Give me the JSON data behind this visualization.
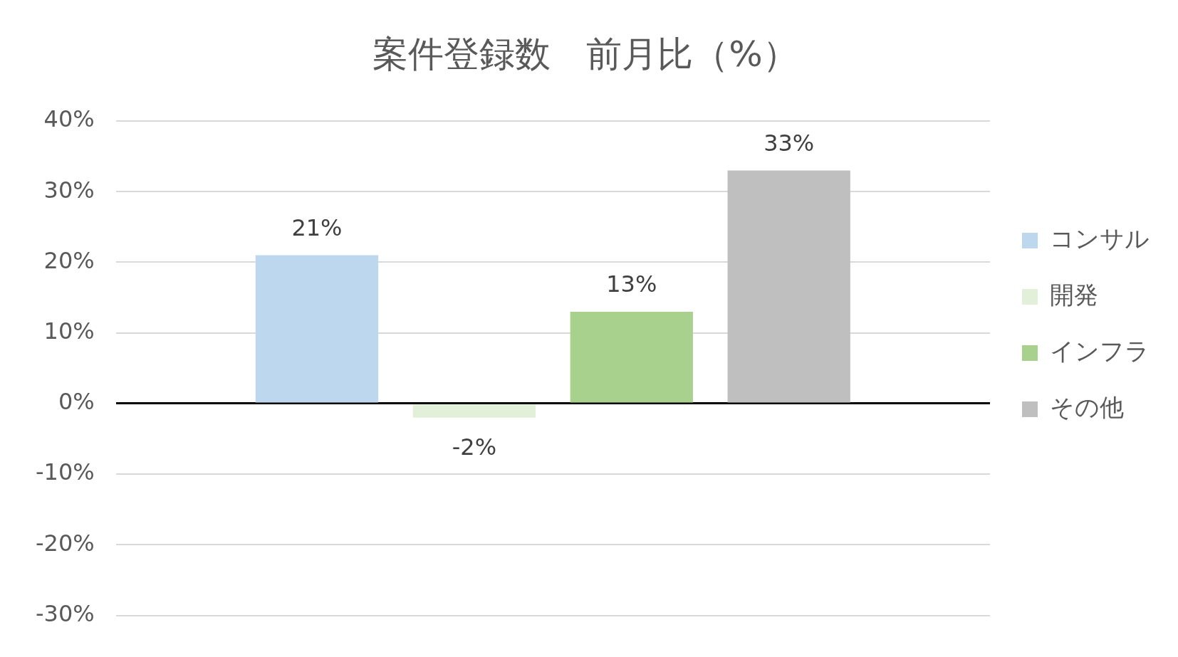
{
  "chart_data": {
    "type": "bar",
    "title": "案件登録数　前月比（%）",
    "categories": [
      null
    ],
    "series": [
      {
        "name": "コンサル",
        "color": "#bdd7ee",
        "values": [
          21
        ],
        "value_labels": [
          "21%"
        ]
      },
      {
        "name": "開発",
        "color": "#e2f0d9",
        "values": [
          -2
        ],
        "value_labels": [
          "-2%"
        ]
      },
      {
        "name": "インフラ",
        "color": "#a9d18e",
        "values": [
          13
        ],
        "value_labels": [
          "13%"
        ]
      },
      {
        "name": "その他",
        "color": "#bfbfbf",
        "values": [
          33
        ],
        "value_labels": [
          "33%"
        ]
      }
    ],
    "ylim": [
      -30,
      40
    ],
    "yticks": [
      {
        "value": -30,
        "label": "-30%"
      },
      {
        "value": -20,
        "label": "-20%"
      },
      {
        "value": -10,
        "label": "-10%"
      },
      {
        "value": 0,
        "label": "0%"
      },
      {
        "value": 10,
        "label": "10%"
      },
      {
        "value": 20,
        "label": "20%"
      },
      {
        "value": 30,
        "label": "30%"
      },
      {
        "value": 40,
        "label": "40%"
      }
    ],
    "grid": "y",
    "legend": "right"
  }
}
